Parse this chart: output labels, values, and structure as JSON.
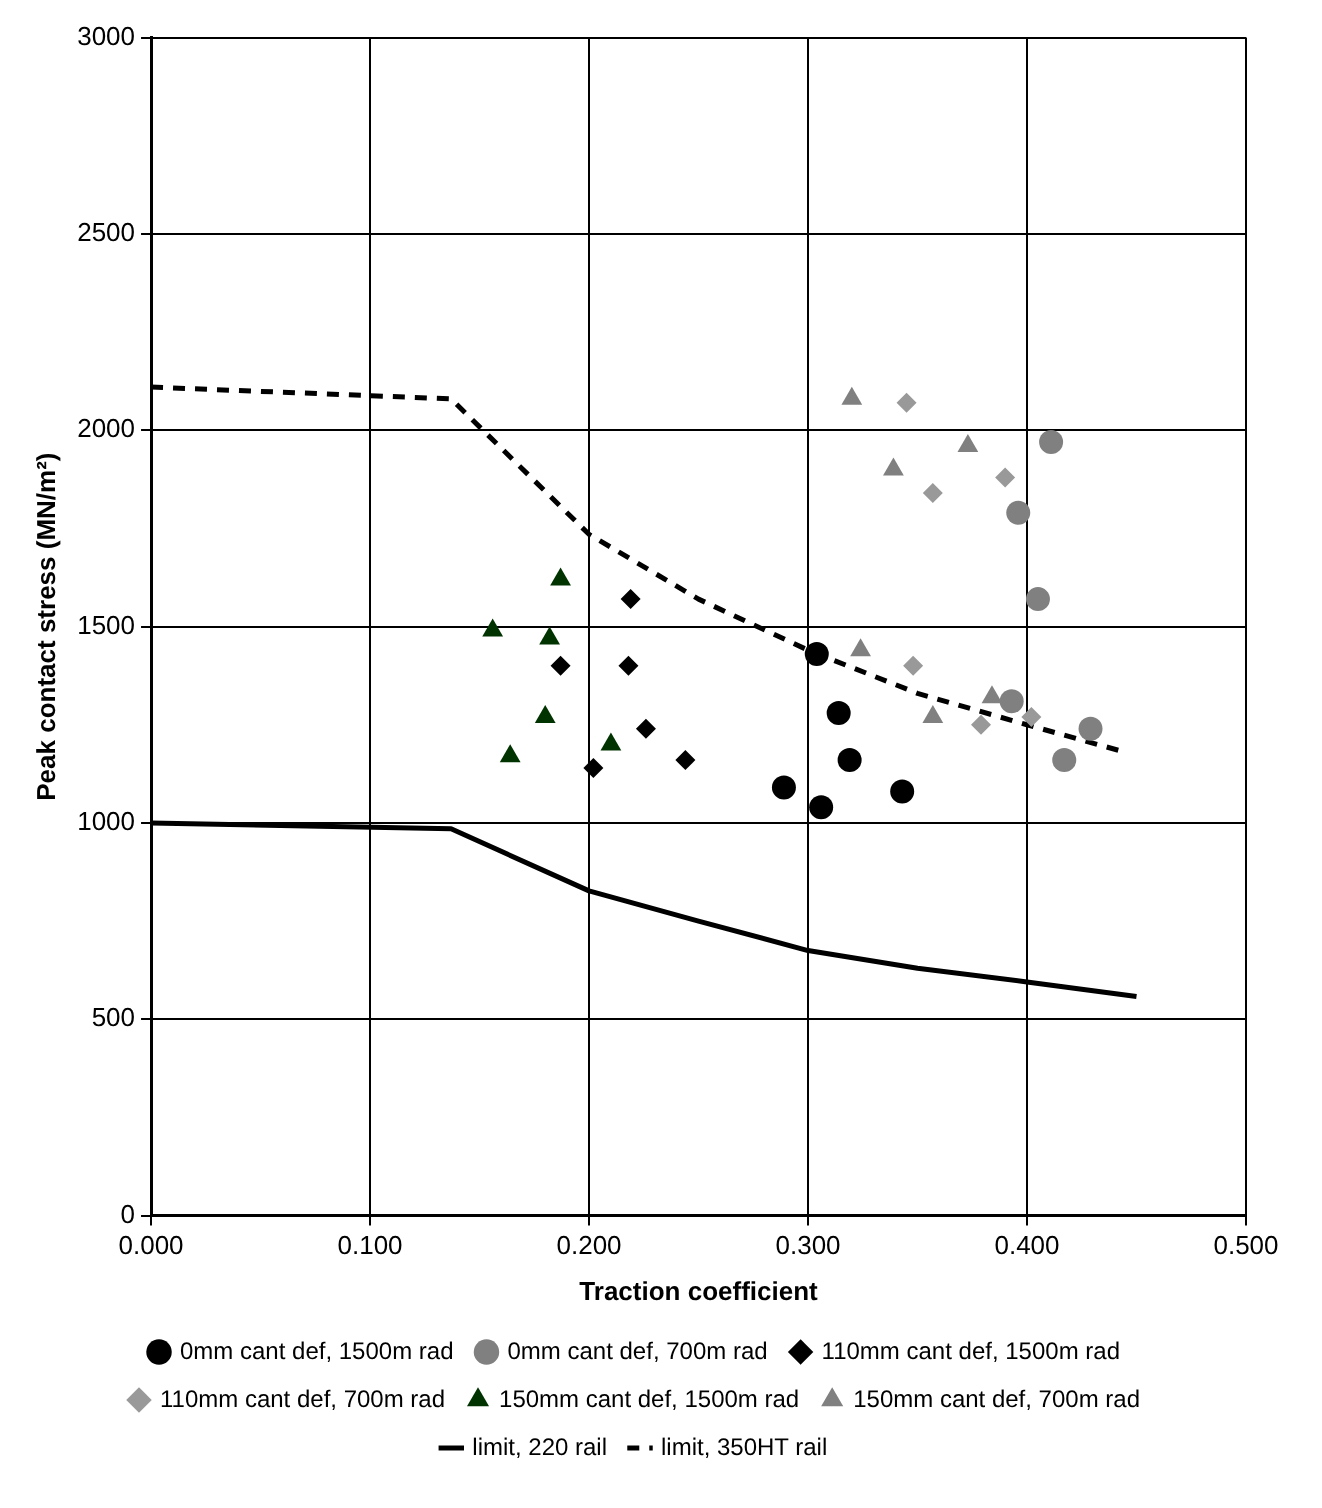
{
  "chart_data": {
    "type": "scatter",
    "xlabel": "Traction coefficient",
    "ylabel": "Peak contact stress (MN/m²)",
    "xlim": [
      0,
      0.5
    ],
    "xticks": [
      {
        "value": 0,
        "label": "0.000"
      },
      {
        "value": 0.1,
        "label": "0.100"
      },
      {
        "value": 0.2,
        "label": "0.200"
      },
      {
        "value": 0.3,
        "label": "0.300"
      },
      {
        "value": 0.4,
        "label": "0.400"
      },
      {
        "value": 0.5,
        "label": "0.500"
      }
    ],
    "ylim": [
      0,
      3000
    ],
    "yticks": [
      0,
      500,
      1000,
      1500,
      2000,
      2500,
      3000
    ],
    "grid": true,
    "legend": "bottom",
    "series": [
      {
        "name": "0mm cant def, 1500m rad",
        "color": "#000000",
        "marker": "circle",
        "x": [
          0.304,
          0.314,
          0.319,
          0.289,
          0.306,
          0.343
        ],
        "values": [
          1430,
          1280,
          1160,
          1090,
          1040,
          1080
        ]
      },
      {
        "name": "0mm cant def, 700m rad",
        "color": "#808080",
        "marker": "circle",
        "x": [
          0.411,
          0.396,
          0.405,
          0.393,
          0.429,
          0.417
        ],
        "values": [
          1970,
          1790,
          1570,
          1310,
          1240,
          1160
        ]
      },
      {
        "name": "110mm cant def, 1500m rad",
        "color": "#000000",
        "marker": "diamond",
        "x": [
          0.219,
          0.187,
          0.218,
          0.226,
          0.202,
          0.244
        ],
        "values": [
          1570,
          1400,
          1400,
          1240,
          1140,
          1160
        ]
      },
      {
        "name": "110mm cant def, 700m rad",
        "color": "#999999",
        "marker": "diamond",
        "x": [
          0.345,
          0.357,
          0.39,
          0.348,
          0.379,
          0.402
        ],
        "values": [
          2070,
          1840,
          1880,
          1400,
          1250,
          1270
        ]
      },
      {
        "name": "150mm cant def, 1500m rad",
        "color": "#003300",
        "marker": "triangle",
        "x": [
          0.187,
          0.156,
          0.182,
          0.18,
          0.164,
          0.21
        ],
        "values": [
          1620,
          1490,
          1470,
          1270,
          1170,
          1200
        ]
      },
      {
        "name": "150mm cant def, 700m rad",
        "color": "#808080",
        "marker": "triangle",
        "x": [
          0.32,
          0.339,
          0.373,
          0.324,
          0.357,
          0.384
        ],
        "values": [
          2080,
          1900,
          1960,
          1440,
          1270,
          1320
        ]
      },
      {
        "name": "limit, 220 rail",
        "type": "line",
        "color": "#000000",
        "marker": "none",
        "line_style": "solid",
        "x": [
          0,
          0.137,
          0.2,
          0.25,
          0.3,
          0.35,
          0.4,
          0.45
        ],
        "values": [
          1000,
          985,
          827,
          750,
          675,
          630,
          595,
          558
        ]
      },
      {
        "name": "limit, 350HT rail",
        "type": "line",
        "color": "#000000",
        "marker": "none",
        "line_style": "dashed",
        "x": [
          0,
          0.137,
          0.2,
          0.25,
          0.3,
          0.35,
          0.4,
          0.445
        ],
        "values": [
          2110,
          2080,
          1735,
          1570,
          1440,
          1330,
          1250,
          1180
        ]
      }
    ]
  }
}
